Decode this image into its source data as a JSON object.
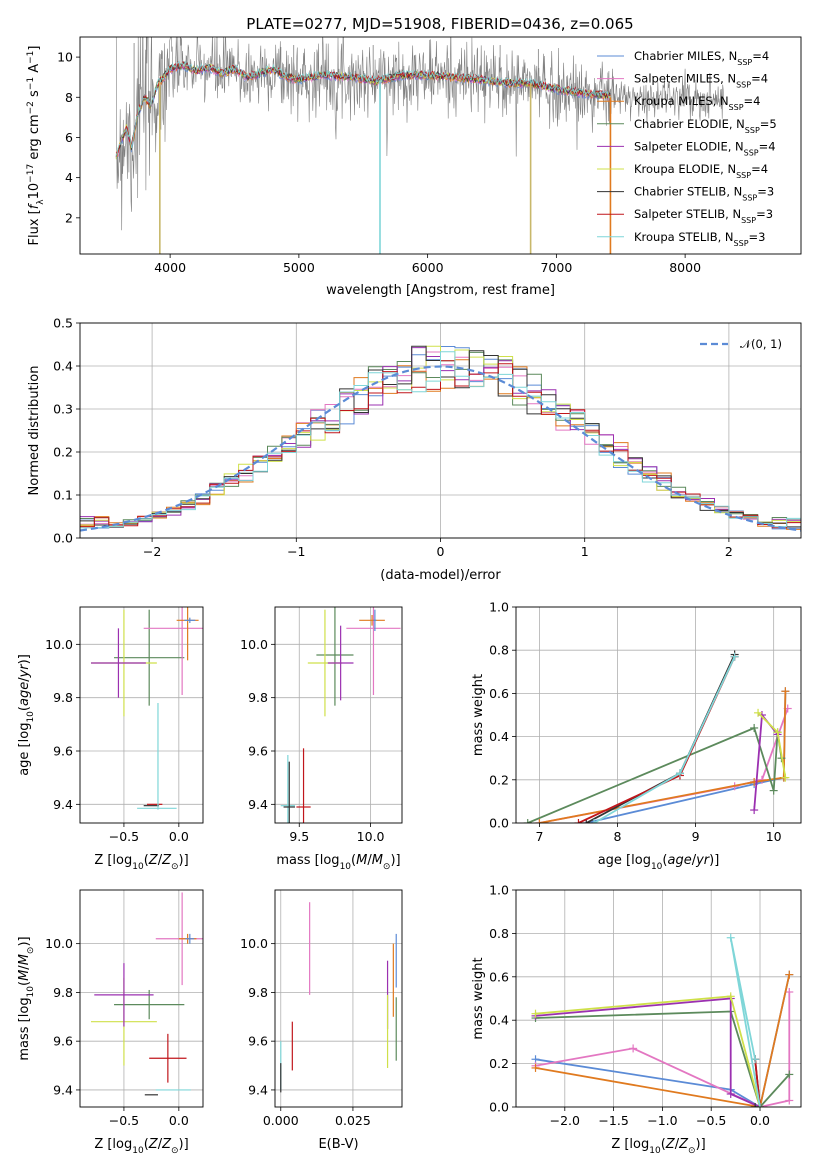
{
  "title": "PLATE=0277, MJD=51908, FIBERID=0436, z=0.065",
  "colors": {
    "Chabrier MILES": "#5b8bd6",
    "Salpeter MILES": "#e377c2",
    "Kroupa MILES": "#e07a1f",
    "Chabrier ELODIE": "#5c8a5c",
    "Salpeter ELODIE": "#9b30b0",
    "Kroupa ELODIE": "#cfe04a",
    "Chabrier STELIB": "#333333",
    "Salpeter STELIB": "#c0161b",
    "Kroupa STELIB": "#7fd6d8",
    "data": "#808080",
    "normal": "#5b8bd6"
  },
  "chart_data": [
    {
      "type": "line",
      "panel": "spectrum",
      "title": "PLATE=0277, MJD=51908, FIBERID=0436, z=0.065",
      "xlabel": "wavelength [Angstrom, rest frame]",
      "ylabel": "Flux [f_λ10^-17 erg cm^-2 s^-1 A^-1]",
      "xlim": [
        3300,
        8900
      ],
      "ylim": [
        0.2,
        11
      ],
      "xticks": [
        4000,
        5000,
        6000,
        7000,
        8000
      ],
      "yticks": [
        2,
        4,
        6,
        8,
        10
      ],
      "spectrum_x": [
        3580,
        3620,
        3660,
        3700,
        3750,
        3800,
        3850,
        3900,
        3950,
        4000,
        4100,
        4200,
        4300,
        4400,
        4500,
        4600,
        4700,
        4800,
        4900,
        5000,
        5200,
        5400,
        5600,
        5800,
        6000,
        6200,
        6400,
        6600,
        6800,
        7000,
        7200,
        7400,
        7420
      ],
      "spectrum_y": [
        5.0,
        5.8,
        6.5,
        5.5,
        7.2,
        8.0,
        7.6,
        8.6,
        9.0,
        9.4,
        9.6,
        9.3,
        9.5,
        9.2,
        9.4,
        9.0,
        9.2,
        9.4,
        9.0,
        8.9,
        9.1,
        9.0,
        8.8,
        9.1,
        9.1,
        9.0,
        8.9,
        8.7,
        8.7,
        8.4,
        8.2,
        8.1,
        8.0
      ],
      "legend": [
        {
          "name": "Chabrier MILES",
          "nssp": "4"
        },
        {
          "name": "Salpeter MILES",
          "nssp": "4"
        },
        {
          "name": "Kroupa MILES",
          "nssp": "4"
        },
        {
          "name": "Chabrier ELODIE",
          "nssp": "5"
        },
        {
          "name": "Salpeter ELODIE",
          "nssp": "4"
        },
        {
          "name": "Kroupa ELODIE",
          "nssp": "4"
        },
        {
          "name": "Chabrier STELIB",
          "nssp": "3"
        },
        {
          "name": "Salpeter STELIB",
          "nssp": "3"
        },
        {
          "name": "Kroupa STELIB",
          "nssp": "3"
        }
      ]
    },
    {
      "type": "histogram",
      "panel": "residuals",
      "xlabel": "(data-model)/error",
      "ylabel": "Normed distribution",
      "xlim": [
        -2.5,
        2.5
      ],
      "ylim": [
        0,
        0.5
      ],
      "xticks": [
        -2,
        -1,
        0,
        1,
        2
      ],
      "yticks": [
        0.0,
        0.1,
        0.2,
        0.3,
        0.4,
        0.5
      ],
      "bin_width": 0.1,
      "legend_label": "𝒩(0, 1)",
      "grid": true
    },
    {
      "type": "scatter",
      "panel": "Z-age",
      "xlabel": "Z [log10(Z/Z⊙)]",
      "ylabel": "age [log10(age/yr)]",
      "xlim": [
        -0.9,
        0.22
      ],
      "ylim": [
        9.33,
        10.14
      ],
      "xticks": [
        -0.5,
        0.0
      ],
      "yticks": [
        9.4,
        9.6,
        9.8,
        10.0
      ],
      "points": [
        {
          "model": "Kroupa STELIB",
          "x": -0.2,
          "y": 9.385,
          "xerr": 0.18,
          "yerr": 0.0
        },
        {
          "model": "Chabrier STELIB",
          "x": -0.25,
          "y": 9.395,
          "xerr": 0.07,
          "yerr": 0.0
        },
        {
          "model": "Salpeter STELIB",
          "x": -0.22,
          "y": 9.4,
          "xerr": 0.07,
          "yerr": 0.0
        },
        {
          "model": "Chabrier ELODIE",
          "x": -0.27,
          "y": 9.95,
          "xerr": 0.32,
          "yerr": 0.18
        },
        {
          "model": "Kroupa ELODIE",
          "x": -0.5,
          "y": 9.93,
          "xerr": 0.3,
          "yerr": 0.2
        },
        {
          "model": "Salpeter ELODIE",
          "x": -0.55,
          "y": 9.93,
          "xerr": 0.25,
          "yerr": 0.13
        },
        {
          "model": "Salpeter MILES",
          "x": 0.03,
          "y": 10.06,
          "xerr": 0.35,
          "yerr": 0.25
        },
        {
          "model": "Kroupa MILES",
          "x": 0.08,
          "y": 10.09,
          "xerr": 0.1,
          "yerr": 0.15
        },
        {
          "model": "Chabrier MILES",
          "x": 0.1,
          "y": 10.09,
          "xerr": 0.05,
          "yerr": 0.01
        },
        {
          "model": "Kroupa STELIB",
          "x": -0.19,
          "y": 9.58,
          "xerr": 0.0,
          "yerr": 0.2
        }
      ]
    },
    {
      "type": "scatter",
      "panel": "mass-age",
      "xlabel": "mass [log10(M/M⊙)]",
      "ylabel": "",
      "xlim": [
        9.33,
        10.22
      ],
      "ylim": [
        9.33,
        10.14
      ],
      "xticks": [
        9.5,
        10.0
      ],
      "yticks": [
        9.4,
        9.6,
        9.8,
        10.0
      ],
      "points": [
        {
          "model": "Kroupa STELIB",
          "x": 9.42,
          "y": 9.395,
          "xerr": 0.05,
          "yerr": 0.19
        },
        {
          "model": "Chabrier STELIB",
          "x": 9.43,
          "y": 9.39,
          "xerr": 0.04,
          "yerr": 0.17
        },
        {
          "model": "Salpeter STELIB",
          "x": 9.53,
          "y": 9.39,
          "xerr": 0.05,
          "yerr": 0.22
        },
        {
          "model": "Chabrier ELODIE",
          "x": 9.75,
          "y": 9.96,
          "xerr": 0.13,
          "yerr": 0.19
        },
        {
          "model": "Kroupa ELODIE",
          "x": 9.68,
          "y": 9.93,
          "xerr": 0.12,
          "yerr": 0.2
        },
        {
          "model": "Salpeter ELODIE",
          "x": 9.79,
          "y": 9.93,
          "xerr": 0.09,
          "yerr": 0.14
        },
        {
          "model": "Salpeter MILES",
          "x": 10.02,
          "y": 10.06,
          "xerr": 0.19,
          "yerr": 0.25
        },
        {
          "model": "Kroupa MILES",
          "x": 10.01,
          "y": 10.09,
          "xerr": 0.09,
          "yerr": 0.02
        },
        {
          "model": "Chabrier MILES",
          "x": 10.03,
          "y": 10.09,
          "xerr": 0.01,
          "yerr": 0.04
        }
      ]
    },
    {
      "type": "line",
      "panel": "age-mass-weight",
      "xlabel": "age [log10(age/yr)]",
      "ylabel": "mass weight",
      "xlim": [
        6.7,
        10.35
      ],
      "ylim": [
        0,
        1
      ],
      "xticks": [
        7,
        8,
        9,
        10
      ],
      "yticks": [
        0.0,
        0.2,
        0.4,
        0.6,
        0.8,
        1.0
      ],
      "series": [
        {
          "name": "Chabrier MILES",
          "x": [
            7.6,
            9.75,
            10.13,
            10.15
          ],
          "y": [
            0.0,
            0.18,
            0.21,
            0.61
          ]
        },
        {
          "name": "Salpeter MILES",
          "x": [
            7.0,
            9.5,
            9.85,
            10.18
          ],
          "y": [
            0.0,
            0.17,
            0.2,
            0.53
          ]
        },
        {
          "name": "Kroupa MILES",
          "x": [
            7.0,
            9.75,
            10.13,
            10.15
          ],
          "y": [
            0.0,
            0.19,
            0.21,
            0.61
          ]
        },
        {
          "name": "Chabrier ELODIE",
          "x": [
            6.85,
            9.75,
            10.0,
            10.05,
            10.1
          ],
          "y": [
            0.0,
            0.44,
            0.15,
            0.42,
            0.3
          ]
        },
        {
          "name": "Salpeter ELODIE",
          "x": [
            9.75,
            9.85,
            10.05
          ],
          "y": [
            0.06,
            0.5,
            0.41
          ]
        },
        {
          "name": "Kroupa ELODIE",
          "x": [
            9.8,
            10.05,
            10.15
          ],
          "y": [
            0.51,
            0.42,
            0.21
          ]
        },
        {
          "name": "Chabrier STELIB",
          "x": [
            7.6,
            8.8,
            9.5
          ],
          "y": [
            0.0,
            0.23,
            0.78
          ]
        },
        {
          "name": "Salpeter STELIB",
          "x": [
            7.5,
            8.8,
            9.5
          ],
          "y": [
            0.0,
            0.22,
            0.77
          ]
        },
        {
          "name": "Kroupa STELIB",
          "x": [
            7.7,
            8.8,
            9.5
          ],
          "y": [
            0.0,
            0.23,
            0.77
          ]
        }
      ]
    },
    {
      "type": "scatter",
      "panel": "Z-mass",
      "xlabel": "Z [log10(Z/Z⊙)]",
      "ylabel": "mass [log10(M/M⊙)]",
      "xlim": [
        -0.9,
        0.22
      ],
      "ylim": [
        9.33,
        10.22
      ],
      "xticks": [
        -0.5,
        0.0
      ],
      "yticks": [
        9.4,
        9.6,
        9.8,
        10.0
      ],
      "points": [
        {
          "model": "Chabrier STELIB",
          "x": -0.25,
          "y": 9.38,
          "xerr": 0.06,
          "yerr": 0.0
        },
        {
          "model": "Kroupa STELIB",
          "x": -0.05,
          "y": 9.4,
          "xerr": 0.16,
          "yerr": 0.0
        },
        {
          "model": "Salpeter STELIB",
          "x": -0.1,
          "y": 9.53,
          "xerr": 0.17,
          "yerr": 0.1
        },
        {
          "model": "Chabrier ELODIE",
          "x": -0.27,
          "y": 9.75,
          "xerr": 0.32,
          "yerr": 0.06
        },
        {
          "model": "Kroupa ELODIE",
          "x": -0.5,
          "y": 9.68,
          "xerr": 0.3,
          "yerr": 0.18
        },
        {
          "model": "Salpeter ELODIE",
          "x": -0.5,
          "y": 9.79,
          "xerr": 0.27,
          "yerr": 0.13
        },
        {
          "model": "Salpeter MILES",
          "x": 0.03,
          "y": 10.02,
          "xerr": 0.24,
          "yerr": 0.19
        },
        {
          "model": "Kroupa MILES",
          "x": 0.08,
          "y": 10.02,
          "xerr": 0.08,
          "yerr": 0.02
        },
        {
          "model": "Chabrier MILES",
          "x": 0.1,
          "y": 10.02,
          "xerr": 0.04,
          "yerr": 0.02
        }
      ]
    },
    {
      "type": "scatter",
      "panel": "EBV-mass",
      "xlabel": "E(B-V)",
      "ylabel": "",
      "xlim": [
        -0.002,
        0.042
      ],
      "ylim": [
        9.33,
        10.22
      ],
      "xticks": [
        0.0,
        0.025
      ],
      "yticks": [
        9.4,
        9.6,
        9.8,
        10.0
      ],
      "points": [
        {
          "model": "Kroupa STELIB",
          "x": 0.0,
          "y": 9.5,
          "xerr": 0,
          "yerr": 0.1
        },
        {
          "model": "Chabrier STELIB",
          "x": 0.0,
          "y": 9.45,
          "xerr": 0,
          "yerr": 0.06
        },
        {
          "model": "Salpeter STELIB",
          "x": 0.004,
          "y": 9.58,
          "xerr": 0,
          "yerr": 0.1
        },
        {
          "model": "Salpeter MILES",
          "x": 0.01,
          "y": 9.98,
          "xerr": 0,
          "yerr": 0.19
        },
        {
          "model": "Salpeter ELODIE",
          "x": 0.037,
          "y": 9.79,
          "xerr": 0,
          "yerr": 0.14
        },
        {
          "model": "Kroupa ELODIE",
          "x": 0.037,
          "y": 9.64,
          "xerr": 0,
          "yerr": 0.15
        },
        {
          "model": "Kroupa MILES",
          "x": 0.039,
          "y": 9.85,
          "xerr": 0,
          "yerr": 0.15
        },
        {
          "model": "Chabrier MILES",
          "x": 0.04,
          "y": 9.93,
          "xerr": 0,
          "yerr": 0.11
        },
        {
          "model": "Chabrier ELODIE",
          "x": 0.04,
          "y": 9.65,
          "xerr": 0,
          "yerr": 0.13
        }
      ]
    },
    {
      "type": "line",
      "panel": "Z-mass-weight",
      "xlabel": "Z [log10(Z/Z⊙)]",
      "ylabel": "mass weight",
      "xlim": [
        -2.5,
        0.42
      ],
      "ylim": [
        0,
        1
      ],
      "xticks": [
        -2.0,
        -1.5,
        -1.0,
        -0.5,
        0.0
      ],
      "yticks": [
        0.0,
        0.2,
        0.4,
        0.6,
        0.8,
        1.0
      ],
      "series": [
        {
          "name": "Chabrier MILES",
          "x": [
            -2.3,
            -0.3,
            0.0,
            0.3
          ],
          "y": [
            0.22,
            0.08,
            0.0,
            0.61
          ]
        },
        {
          "name": "Salpeter MILES",
          "x": [
            -2.3,
            -1.3,
            0.0,
            0.3,
            0.3
          ],
          "y": [
            0.19,
            0.27,
            0.0,
            0.03,
            0.53
          ]
        },
        {
          "name": "Kroupa MILES",
          "x": [
            -2.3,
            0.0,
            0.3
          ],
          "y": [
            0.18,
            0.0,
            0.61
          ]
        },
        {
          "name": "Chabrier ELODIE",
          "x": [
            -2.3,
            -0.3,
            0.0,
            0.3
          ],
          "y": [
            0.41,
            0.44,
            0.0,
            0.15
          ]
        },
        {
          "name": "Salpeter ELODIE",
          "x": [
            -2.3,
            -0.3,
            -0.3,
            0.0
          ],
          "y": [
            0.42,
            0.5,
            0.06,
            0.0
          ]
        },
        {
          "name": "Kroupa ELODIE",
          "x": [
            -2.3,
            -0.3,
            0.0
          ],
          "y": [
            0.43,
            0.51,
            0.0
          ]
        },
        {
          "name": "Chabrier STELIB",
          "x": [
            -0.05,
            0.0,
            -0.05
          ],
          "y": [
            0.22,
            0.0,
            0.0
          ]
        },
        {
          "name": "Salpeter STELIB",
          "x": [
            -0.05,
            0.0
          ],
          "y": [
            0.22,
            0.0
          ]
        },
        {
          "name": "Kroupa STELIB",
          "x": [
            -0.05,
            -0.3,
            0.0
          ],
          "y": [
            0.22,
            0.78,
            0.0
          ]
        }
      ]
    }
  ]
}
